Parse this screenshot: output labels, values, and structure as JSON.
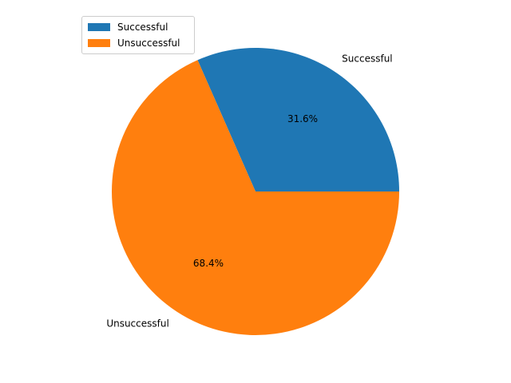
{
  "chart_data": {
    "type": "pie",
    "title": "",
    "categories": [
      "Successful",
      "Unsuccessful"
    ],
    "values": [
      31.6,
      68.4
    ],
    "percent_labels": [
      "31.6%",
      "68.4%"
    ],
    "colors": [
      "#1f77b4",
      "#ff7f0e"
    ],
    "start_angle_deg": 0,
    "direction": "counterclockwise",
    "legend": {
      "placement": "upper-left",
      "entries": [
        "Successful",
        "Unsuccessful"
      ]
    }
  }
}
